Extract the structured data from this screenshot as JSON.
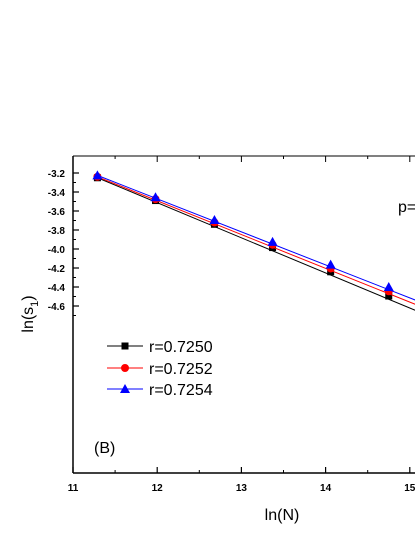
{
  "chart_data": {
    "type": "line",
    "xlabel": "ln(N)",
    "ylabel_main": "ln(s",
    "ylabel_sub": "1",
    "ylabel_close": ")",
    "xlim": [
      11,
      15
    ],
    "ylim": [
      -4.75,
      -3.15
    ],
    "xticks": [
      11,
      12,
      13,
      14,
      15
    ],
    "xtick_labels": [
      "11",
      "12",
      "13",
      "14",
      "15"
    ],
    "yticks": [
      -3.2,
      -3.4,
      -3.6,
      -3.8,
      -4.0,
      -4.2,
      -4.4,
      -4.6
    ],
    "ytick_labels": [
      "-3.2",
      "-3.4",
      "-3.6",
      "-3.8",
      "-4.0",
      "-4.2",
      "-4.4",
      "-4.6"
    ],
    "x": [
      11.29,
      11.98,
      12.68,
      13.37,
      14.06,
      14.75
    ],
    "series": [
      {
        "name": "r=0.7250",
        "values": [
          -3.25,
          -3.49,
          -3.74,
          -3.985,
          -4.24,
          -4.495
        ],
        "slope": -0.3697,
        "color": "#000000",
        "marker": "square"
      },
      {
        "name": "r=0.7252",
        "values": [
          -3.24,
          -3.475,
          -3.72,
          -3.955,
          -4.205,
          -4.445
        ],
        "slope": -0.3556,
        "color": "#ff0000",
        "marker": "circle"
      },
      {
        "name": "r=0.7254",
        "values": [
          -3.225,
          -3.455,
          -3.695,
          -3.925,
          -4.165,
          -4.4
        ],
        "slope": -0.3477,
        "color": "#0000ff",
        "marker": "triangle"
      }
    ],
    "legend_position": "lower-left",
    "annotations": [
      {
        "text": "p=",
        "position": "top-right"
      },
      {
        "text": "(B)",
        "position": "bottom-left"
      }
    ]
  }
}
